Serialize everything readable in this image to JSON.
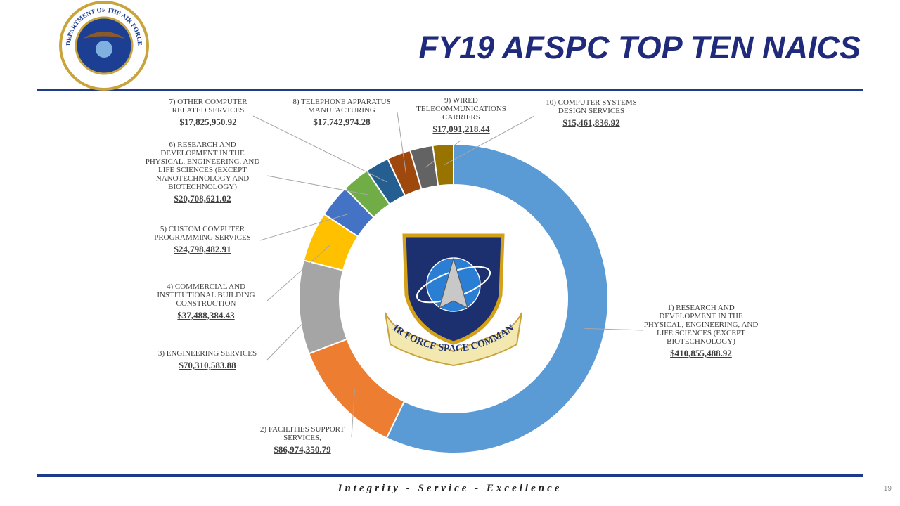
{
  "seal_text": "DEPARTMENT OF THE AIR FORCE",
  "shield_text": "AIR FORCE SPACE COMMAND",
  "chart_data": {
    "type": "doughnut",
    "title": "FY19 AFSPC TOP TEN NAICS",
    "categories": [
      "1) RESEARCH AND DEVELOPMENT IN THE PHYSICAL, ENGINEERING, AND LIFE SCIENCES (EXCEPT BIOTECHNOLOGY)",
      "2) FACILITIES SUPPORT SERVICES,",
      "3) ENGINEERING SERVICES",
      "4) COMMERCIAL AND INSTITUTIONAL BUILDING CONSTRUCTION",
      "5) CUSTOM COMPUTER PROGRAMMING SERVICES",
      "6) RESEARCH AND DEVELOPMENT IN THE PHYSICAL, ENGINEERING, AND LIFE SCIENCES (EXCEPT NANOTECHNOLOGY AND BIOTECHNOLOGY)",
      "7) OTHER COMPUTER RELATED SERVICES",
      "8) TELEPHONE APPARATUS MANUFACTURING",
      "9) WIRED TELECOMMUNICATIONS CARRIERS",
      "10) COMPUTER SYSTEMS DESIGN SERVICES"
    ],
    "values": [
      410855488.92,
      86974350.79,
      70310583.88,
      37488384.43,
      24798482.91,
      20708621.02,
      17825950.92,
      17742974.28,
      17091218.44,
      15461836.92
    ],
    "value_labels": [
      "$410,855,488.92",
      "$86,974,350.79",
      "$70,310,583.88",
      "$37,488,384.43",
      "$24,798,482.91",
      "$20,708,621.02",
      "$17,825,950.92",
      "$17,742,974.28",
      "$17,091,218.44",
      "$15,461,836.92"
    ],
    "colors": [
      "#5b9bd5",
      "#ed7d31",
      "#a5a5a5",
      "#ffc000",
      "#4472c4",
      "#70ad47",
      "#255e91",
      "#9e480e",
      "#636363",
      "#997300"
    ]
  },
  "footer": "Integrity - Service - Excellence",
  "page_number": 19
}
